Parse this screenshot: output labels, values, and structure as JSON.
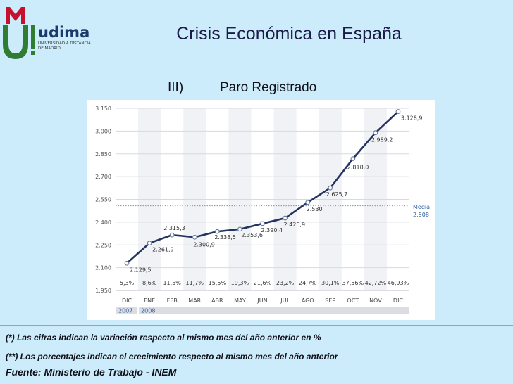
{
  "header": {
    "logo_text": "udima",
    "logo_tagline_1": "UNIVERSIDAD A DISTANCIA",
    "logo_tagline_2": "DE MADRID",
    "title": "Crisis Económica en España"
  },
  "section": {
    "number": "III)",
    "title": "Paro Registrado"
  },
  "colors": {
    "background": "#ccecfb",
    "line": "#24345e",
    "grid": "#d6dae0",
    "media_label": "#3060a0",
    "year_bg": "#dcdde2"
  },
  "chart_data": {
    "type": "line",
    "categories": [
      "DIC",
      "ENE",
      "FEB",
      "MAR",
      "ABR",
      "MAY",
      "JUN",
      "JUL",
      "AGO",
      "SEP",
      "OCT",
      "NOV",
      "DIC"
    ],
    "values": [
      2129.5,
      2261.9,
      2315.3,
      2300.9,
      2338.5,
      2353.6,
      2390.4,
      2426.9,
      2530,
      2625.7,
      2818.0,
      2989.2,
      3128.9
    ],
    "value_labels": [
      "2.129,5",
      "2.261,9",
      "2.315,3",
      "2.300,9",
      "2.338,5",
      "2.353,6",
      "2.390,4",
      "2.426,9",
      "2.530",
      "2.625,7",
      "2.818,0",
      "2.989,2",
      "3.128,9"
    ],
    "percent_labels": [
      "5,3%",
      "8,6%",
      "11,5%",
      "11,7%",
      "15,5%",
      "19,3%",
      "21,6%",
      "23,2%",
      "24,7%",
      "30,1%",
      "37,56%",
      "42,72%",
      "46,93%"
    ],
    "yticks": [
      1950,
      2100,
      2250,
      2400,
      2550,
      2700,
      2850,
      3000,
      3150
    ],
    "ytick_labels": [
      "1.950",
      "2.100",
      "2.250",
      "2.400",
      "2.550",
      "2.700",
      "2.850",
      "3.000",
      "3.150"
    ],
    "ylim": [
      1950,
      3150
    ],
    "grid": true,
    "media": {
      "value": 2508,
      "label": "Media",
      "value_label": "2.508"
    },
    "years": [
      "2007",
      "2008"
    ]
  },
  "notes": {
    "note1": "(*) Las cifras indican la variación respecto al mismo mes del año anterior en %",
    "note2": "(**) Los porcentajes indican el crecimiento respecto al mismo mes del año anterior",
    "source": "Fuente: Ministerio de Trabajo - INEM"
  }
}
